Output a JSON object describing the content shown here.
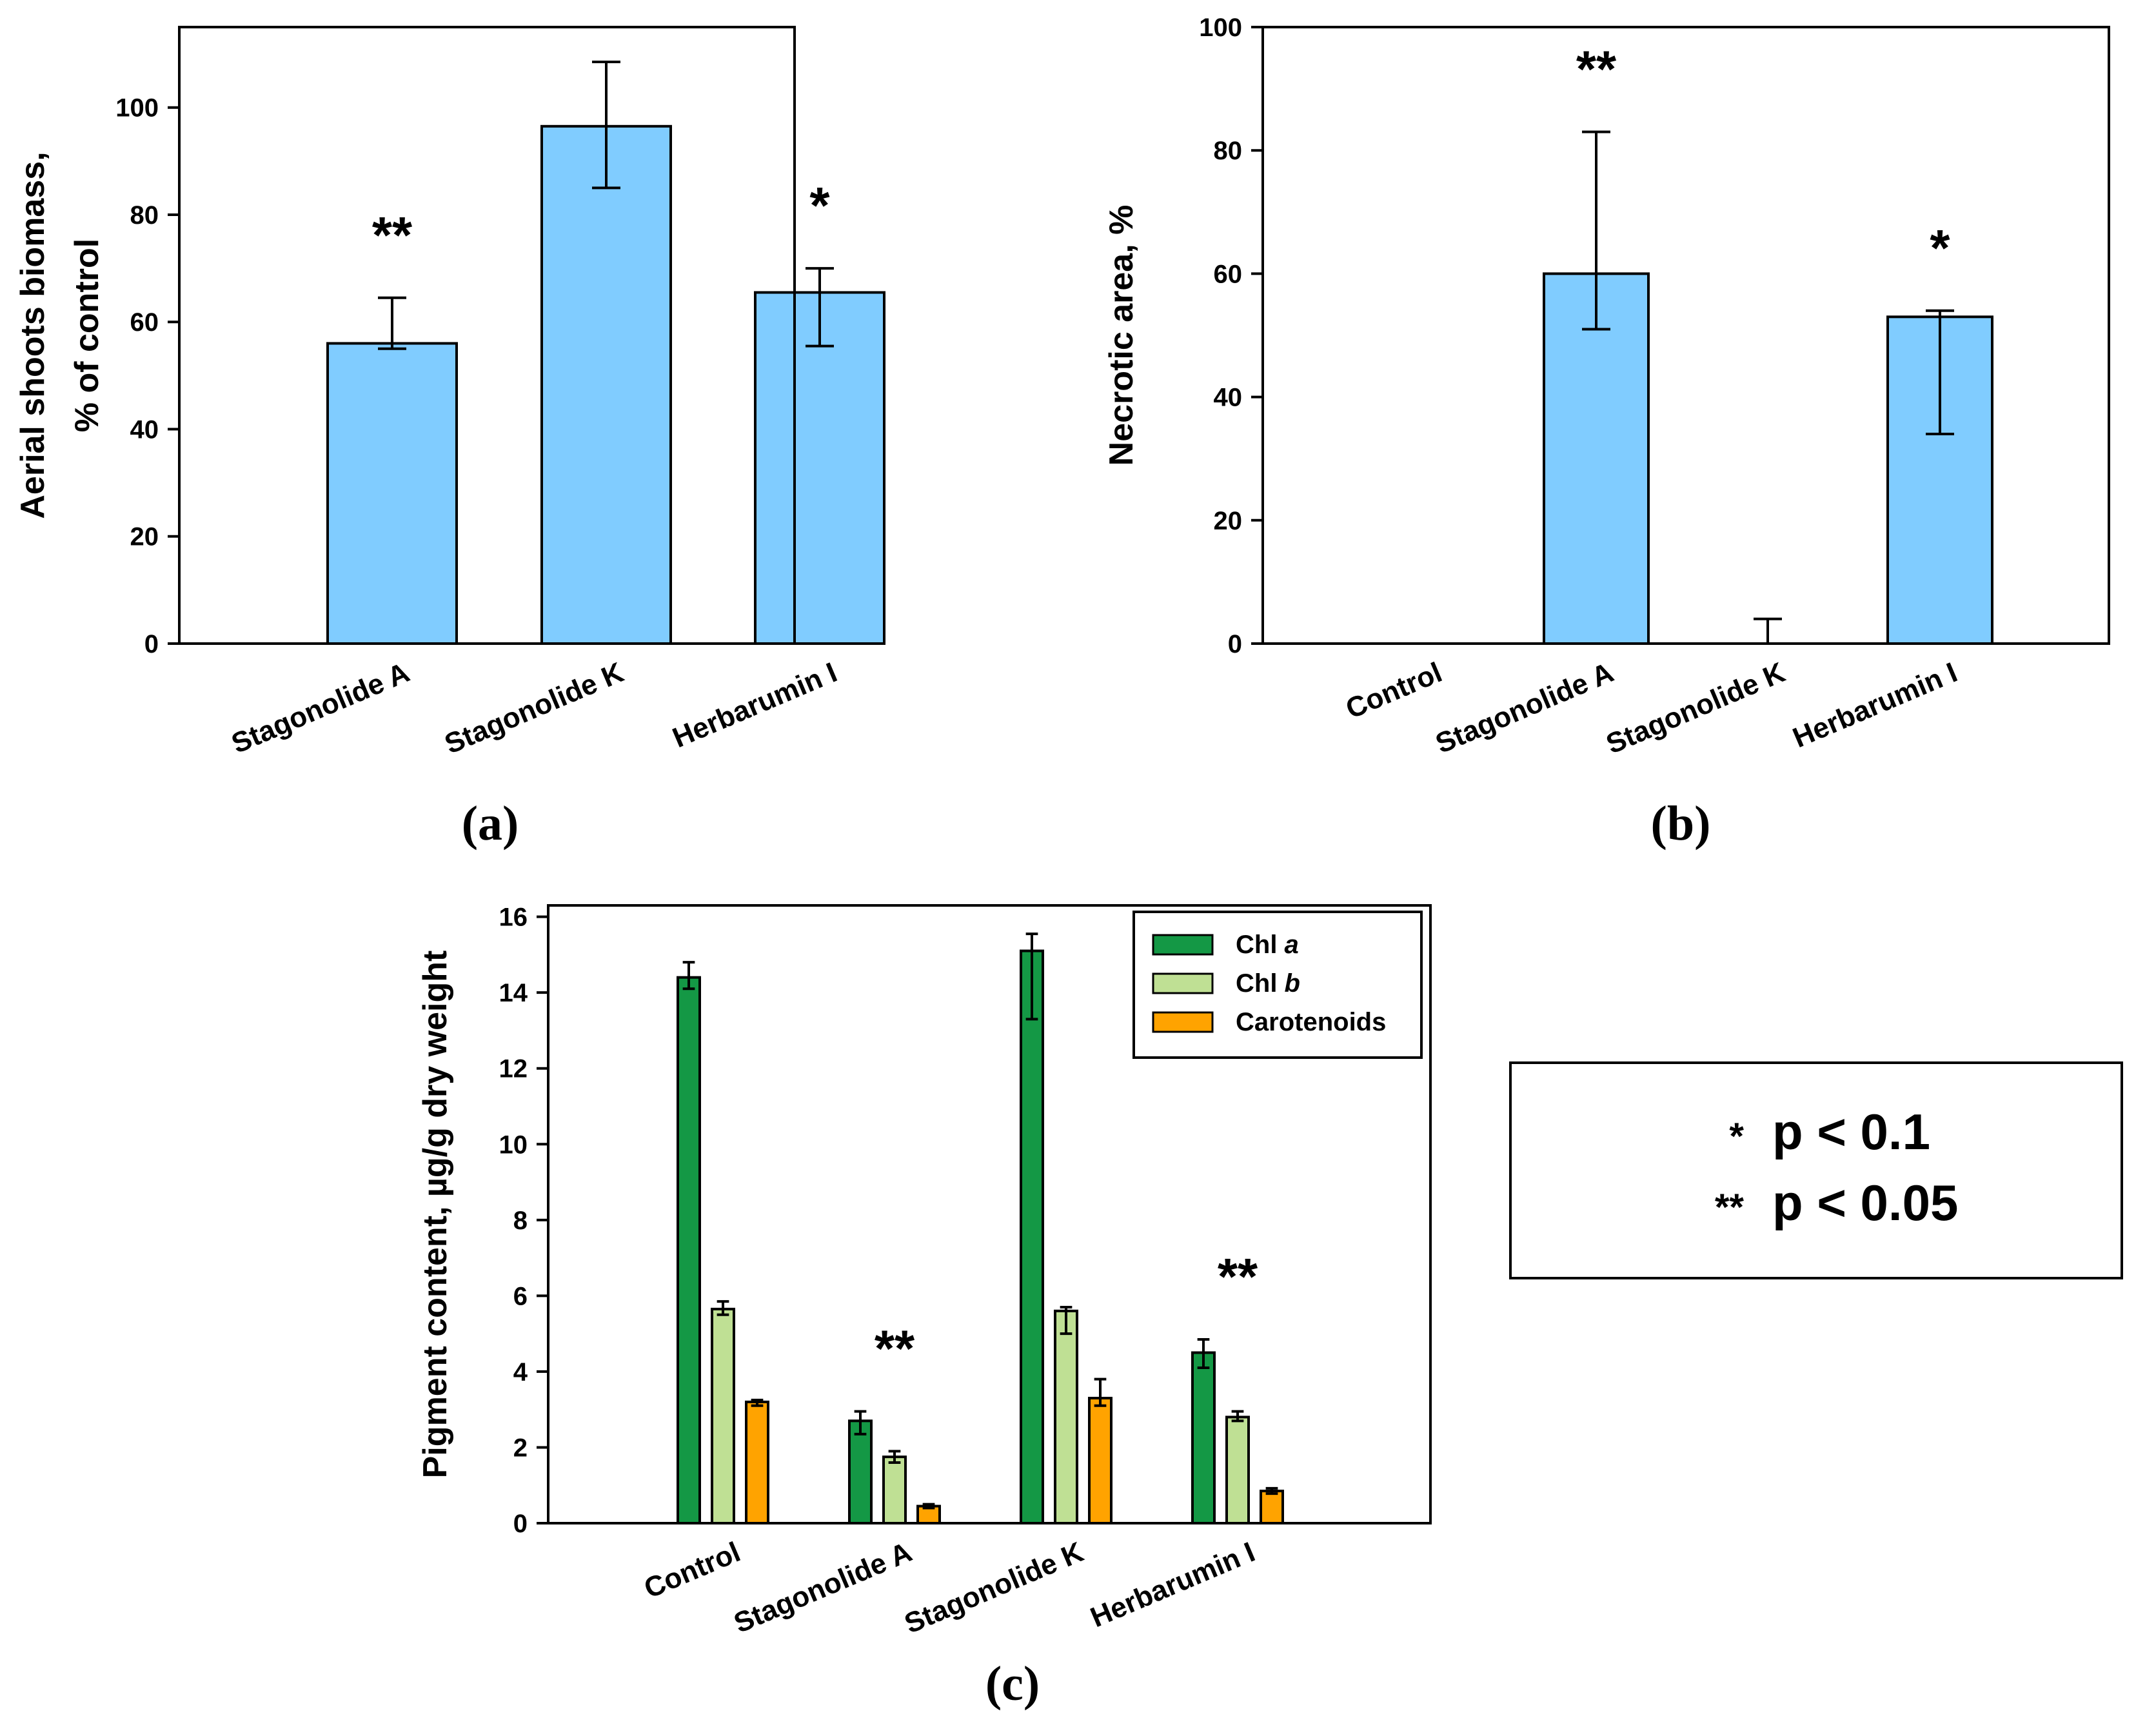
{
  "chart_data": [
    {
      "panel": "(a)",
      "type": "bar",
      "title": "",
      "xlabel": "",
      "ylabel_lines": [
        "Aerial shoots biomass,",
        "% of control"
      ],
      "ylim": [
        0,
        115
      ],
      "yticks": [
        0,
        20,
        40,
        60,
        80,
        100
      ],
      "categories": [
        "Stagonolide A",
        "Stagonolide K",
        "Herbarumin I"
      ],
      "values": [
        56,
        96.5,
        65.5
      ],
      "error_upper": [
        64.5,
        108.5,
        70
      ],
      "error_lower": [
        55,
        85,
        55.5
      ],
      "annotations": [
        "**",
        "",
        "*"
      ],
      "bar_color": "#80CCFF"
    },
    {
      "panel": "(b)",
      "type": "bar",
      "title": "",
      "xlabel": "",
      "ylabel_lines": [
        "Necrotic area, %"
      ],
      "ylim": [
        0,
        100
      ],
      "yticks": [
        0,
        20,
        40,
        60,
        80,
        100
      ],
      "categories": [
        "Control",
        "Stagonolide A",
        "Stagonolide K",
        "Herbarumin I"
      ],
      "values": [
        0,
        60,
        0,
        53
      ],
      "error_upper": [
        null,
        83,
        4,
        54
      ],
      "error_lower": [
        null,
        51,
        null,
        34
      ],
      "annotations": [
        "",
        "**",
        "",
        "*"
      ],
      "bar_color": "#80CCFF"
    },
    {
      "panel": "(c)",
      "type": "bar",
      "title": "",
      "xlabel": "",
      "ylabel_lines": [
        "Pigment content, µg/g dry weight"
      ],
      "ylim": [
        0,
        16.3
      ],
      "yticks": [
        0,
        2,
        4,
        6,
        8,
        10,
        12,
        14,
        16
      ],
      "categories": [
        "Control",
        "Stagonolide A",
        "Stagonolide K",
        "Herbarumin I"
      ],
      "series": [
        {
          "name_main": "Chl ",
          "name_italic": "a",
          "color": "#149845",
          "values": [
            14.4,
            2.7,
            15.1,
            4.5
          ],
          "error_upper": [
            14.8,
            2.95,
            15.55,
            4.85
          ],
          "error_lower": [
            14.1,
            2.35,
            13.3,
            4.1
          ]
        },
        {
          "name_main": "Chl ",
          "name_italic": "b",
          "color": "#BFE094",
          "values": [
            5.65,
            1.75,
            5.6,
            2.8
          ],
          "error_upper": [
            5.85,
            1.9,
            5.7,
            2.95
          ],
          "error_lower": [
            5.5,
            1.6,
            5.0,
            2.7
          ]
        },
        {
          "name_main": "Carotenoids",
          "name_italic": "",
          "color": "#FFA300",
          "values": [
            3.2,
            0.45,
            3.3,
            0.85
          ],
          "error_upper": [
            3.25,
            0.5,
            3.8,
            0.92
          ],
          "error_lower": [
            3.1,
            0.4,
            3.1,
            0.78
          ]
        }
      ],
      "annotations": [
        "",
        "**",
        "",
        "**"
      ],
      "legend_position": "top-right"
    }
  ],
  "significance_legend": [
    {
      "symbol": "*",
      "text": "p < 0.1"
    },
    {
      "symbol": "**",
      "text": "p < 0.05"
    }
  ]
}
